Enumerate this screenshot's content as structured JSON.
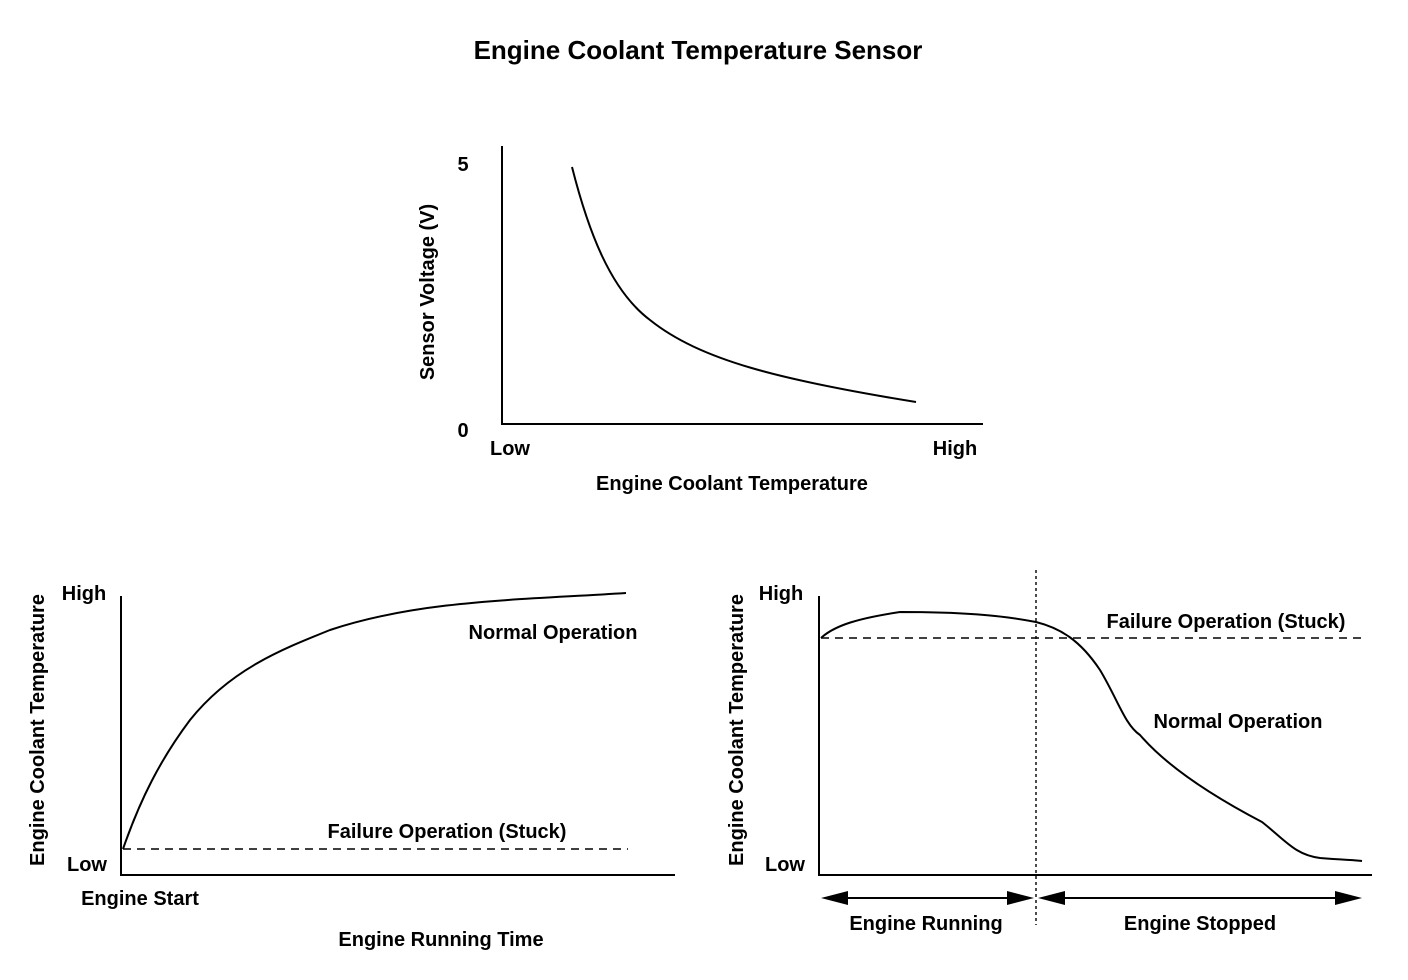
{
  "title": "Engine Coolant Temperature Sensor",
  "voltage_graph": {
    "y_label": "Sensor Voltage (V)",
    "y_max_tick": "5",
    "y_min_tick": "0",
    "x_low": "Low",
    "x_high": "High",
    "x_label": "Engine Coolant Temperature"
  },
  "warmup_graph": {
    "y_label": "Engine Coolant Temperature",
    "y_high": "High",
    "y_low": "Low",
    "x_origin_label": "Engine Start",
    "x_label": "Engine Running Time",
    "normal_label": "Normal Operation",
    "failure_label": "Failure Operation (Stuck)"
  },
  "cooldown_graph": {
    "y_label": "Engine Coolant Temperature",
    "y_high": "High",
    "y_low": "Low",
    "failure_label": "Failure Operation (Stuck)",
    "normal_label": "Normal Operation",
    "running_label": "Engine Running",
    "stopped_label": "Engine Stopped"
  }
}
